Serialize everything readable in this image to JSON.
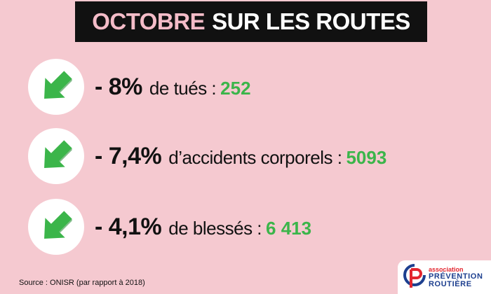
{
  "title": {
    "accent": "OCTOBRE",
    "rest": "SUR LES ROUTES"
  },
  "stats": [
    {
      "icon": "down-arrow-icon",
      "pct": "- 8%",
      "label": "de tués :",
      "value": "252"
    },
    {
      "icon": "down-arrow-icon",
      "pct": "- 7,4%",
      "label": "d’accidents corporels :",
      "value": "5093"
    },
    {
      "icon": "down-arrow-icon",
      "pct": "- 4,1%",
      "label": "de blessés :",
      "value": "6 413"
    }
  ],
  "source": "Source : ONISR (par rapport à 2018)",
  "logo": {
    "line1": "association",
    "line2": "PRÉVENTION",
    "line3": "ROUTIÈRE"
  },
  "colors": {
    "background": "#f5c9d0",
    "title_bg": "#111111",
    "accent": "#f4bcc8",
    "green": "#3bb54a",
    "logo_blue": "#1d3f8f",
    "logo_red": "#e3262f"
  }
}
